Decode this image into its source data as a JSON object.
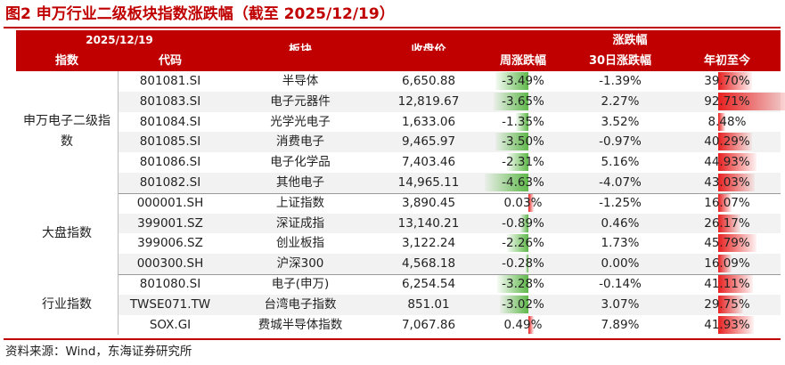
{
  "title": "图2 申万行业二级板块指数涨跌幅（截至 2025/12/19）",
  "header": {
    "date": "2025/12/19",
    "index": "指数",
    "code": "代码",
    "sector": "板块",
    "close": "收盘价",
    "change": "涨跌幅",
    "weekly": "周涨跌幅",
    "day30": "30日涨跌幅",
    "ytd": "年初至今"
  },
  "groups": [
    {
      "label": "申万电子二级指数",
      "rows": [
        {
          "code": "801081.SI",
          "name": "半导体",
          "close": "6,650.88",
          "weekly": "-3.49%",
          "day30": "-1.39%",
          "ytd": "39.70%",
          "weekly_v": -3.49,
          "ytd_v": 39.7
        },
        {
          "code": "801083.SI",
          "name": "电子元器件",
          "close": "12,819.67",
          "weekly": "-3.65%",
          "day30": "2.27%",
          "ytd": "92.71%",
          "weekly_v": -3.65,
          "ytd_v": 92.71
        },
        {
          "code": "801084.SI",
          "name": "光学光电子",
          "close": "1,633.06",
          "weekly": "-1.35%",
          "day30": "3.52%",
          "ytd": "8.48%",
          "weekly_v": -1.35,
          "ytd_v": 8.48
        },
        {
          "code": "801085.SI",
          "name": "消费电子",
          "close": "9,465.97",
          "weekly": "-3.50%",
          "day30": "-0.97%",
          "ytd": "40.29%",
          "weekly_v": -3.5,
          "ytd_v": 40.29
        },
        {
          "code": "801086.SI",
          "name": "电子化学品",
          "close": "7,403.46",
          "weekly": "-2.31%",
          "day30": "5.16%",
          "ytd": "44.93%",
          "weekly_v": -2.31,
          "ytd_v": 44.93
        },
        {
          "code": "801082.SI",
          "name": "其他电子",
          "close": "14,965.11",
          "weekly": "-4.63%",
          "day30": "-4.07%",
          "ytd": "43.03%",
          "weekly_v": -4.63,
          "ytd_v": 43.03
        }
      ]
    },
    {
      "label": "大盘指数",
      "rows": [
        {
          "code": "000001.SH",
          "name": "上证指数",
          "close": "3,890.45",
          "weekly": "0.03%",
          "day30": "-1.25%",
          "ytd": "16.07%",
          "weekly_v": 0.03,
          "ytd_v": 16.07
        },
        {
          "code": "399001.SZ",
          "name": "深证成指",
          "close": "13,140.21",
          "weekly": "-0.89%",
          "day30": "0.46%",
          "ytd": "26.17%",
          "weekly_v": -0.89,
          "ytd_v": 26.17
        },
        {
          "code": "399006.SZ",
          "name": "创业板指",
          "close": "3,122.24",
          "weekly": "-2.26%",
          "day30": "1.73%",
          "ytd": "45.79%",
          "weekly_v": -2.26,
          "ytd_v": 45.79
        },
        {
          "code": "000300.SH",
          "name": "沪深300",
          "close": "4,568.18",
          "weekly": "-0.28%",
          "day30": "0.00%",
          "ytd": "16.09%",
          "weekly_v": -0.28,
          "ytd_v": 16.09
        }
      ]
    },
    {
      "label": "行业指数",
      "rows": [
        {
          "code": "801080.SI",
          "name": "电子(申万)",
          "close": "6,254.54",
          "weekly": "-3.28%",
          "day30": "-0.14%",
          "ytd": "41.11%",
          "weekly_v": -3.28,
          "ytd_v": 41.11
        },
        {
          "code": "TWSE071.TW",
          "name": "台湾电子指数",
          "close": "851.01",
          "weekly": "-3.02%",
          "day30": "3.07%",
          "ytd": "29.75%",
          "weekly_v": -3.02,
          "ytd_v": 29.75
        },
        {
          "code": "SOX.GI",
          "name": "费城半导体指数",
          "close": "7,067.86",
          "weekly": "0.49%",
          "day30": "7.89%",
          "ytd": "41.93%",
          "weekly_v": 0.49,
          "ytd_v": 41.93
        }
      ]
    }
  ],
  "source": "资料来源：Wind，东海证券研究所",
  "colors": {
    "accent": "#c00000",
    "negative": "#5fb84a",
    "positive": "#e82020"
  }
}
